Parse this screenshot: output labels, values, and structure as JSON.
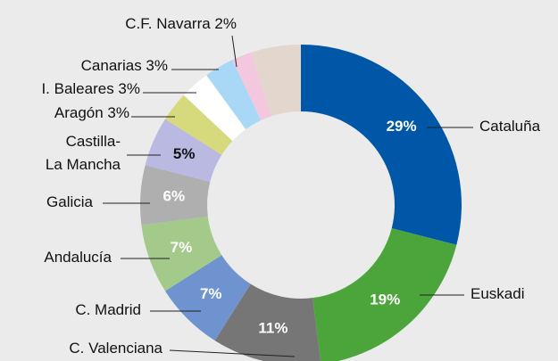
{
  "chart_data": {
    "type": "donut",
    "categories": [
      "Cataluña",
      "Euskadi",
      "C. Valenciana",
      "C. Madrid",
      "Andalucía",
      "Galicia",
      "Castilla-\nLa Mancha",
      "Aragón",
      "I. Baleares",
      "Canarias",
      "C.F. Navarra",
      null
    ],
    "values": [
      29,
      19,
      11,
      7,
      7,
      6,
      5,
      3,
      3,
      3,
      2,
      5
    ],
    "value_labels": [
      "29%",
      "19%",
      "11%",
      "7%",
      "7%",
      "6%",
      "5%",
      "3%",
      "3%",
      "3%",
      "2%",
      null
    ],
    "colors": [
      "#0057a8",
      "#4ba53b",
      "#767676",
      "#6e93cf",
      "#a3c98b",
      "#afafaf",
      "#b9b9e2",
      "#d7da7c",
      "#ffffff",
      "#a8d8f5",
      "#f3c8de",
      "#e3d6cc"
    ]
  }
}
